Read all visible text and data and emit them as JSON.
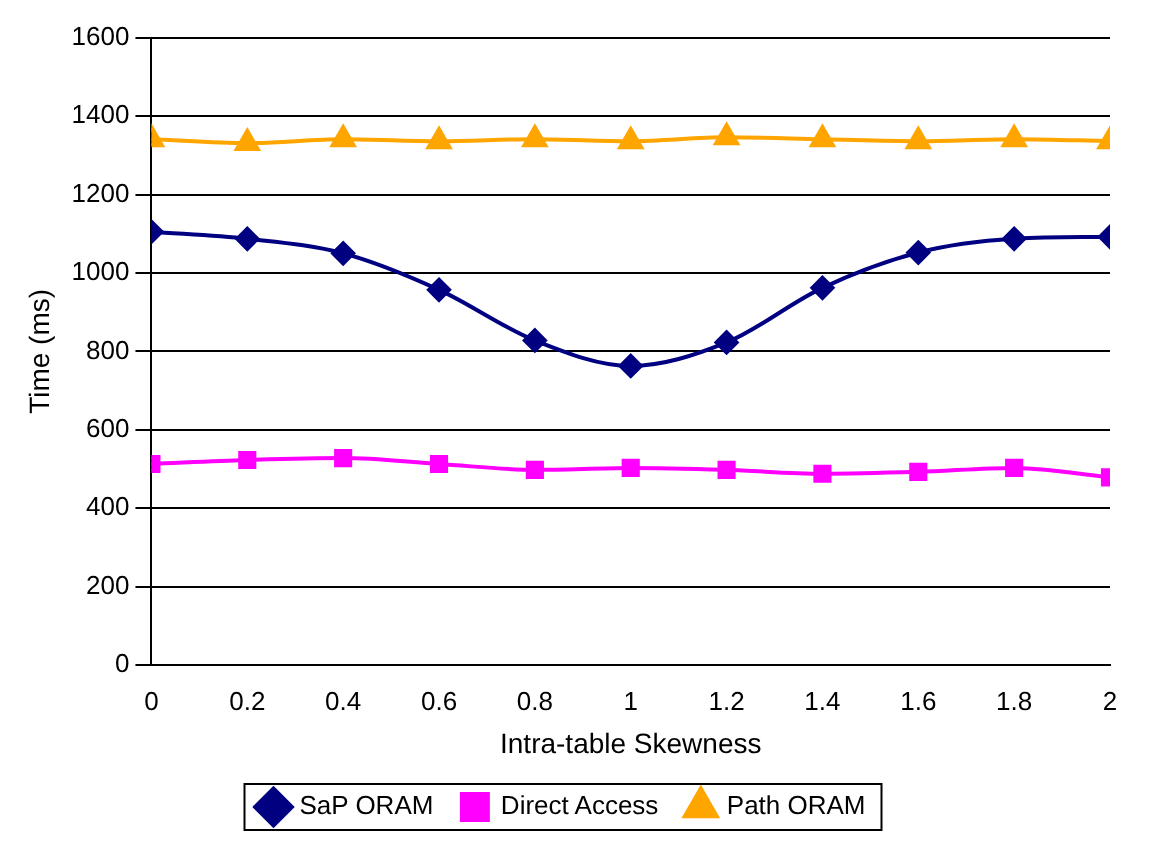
{
  "chart_data": {
    "type": "line",
    "xlabel": "Intra-table Skewness",
    "ylabel": "Time (ms)",
    "x": [
      0,
      0.2,
      0.4,
      0.6,
      0.8,
      1,
      1.2,
      1.4,
      1.6,
      1.8,
      2
    ],
    "series": [
      {
        "name": "SaP ORAM",
        "color": "#000080",
        "marker": "diamond",
        "values": [
          1105,
          1087,
          1050,
          957,
          828,
          763,
          823,
          962,
          1052,
          1087,
          1092
        ]
      },
      {
        "name": "Direct Access",
        "color": "#ff00ff",
        "marker": "square",
        "values": [
          513,
          523,
          528,
          513,
          498,
          503,
          498,
          488,
          493,
          503,
          479
        ]
      },
      {
        "name": "Path ORAM",
        "color": "#ffa500",
        "marker": "triangle",
        "values": [
          1341,
          1331,
          1341,
          1336,
          1341,
          1336,
          1346,
          1341,
          1336,
          1341,
          1336
        ]
      }
    ],
    "xlim": [
      0,
      2
    ],
    "xticks": [
      0,
      0.2,
      0.4,
      0.6,
      0.8,
      1,
      1.2,
      1.4,
      1.6,
      1.8,
      2
    ],
    "ylim": [
      0,
      1600
    ],
    "yticks": [
      0,
      200,
      400,
      600,
      800,
      1000,
      1200,
      1400,
      1600
    ],
    "grid": "y",
    "legend": "bottom",
    "line_style": "solid"
  }
}
